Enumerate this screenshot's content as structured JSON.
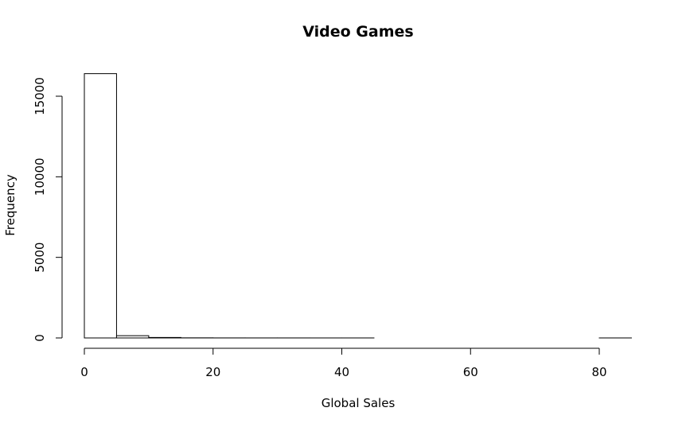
{
  "chart_data": {
    "type": "bar",
    "subtype": "histogram",
    "title": "Video Games",
    "xlabel": "Global Sales",
    "ylabel": "Frequency",
    "bin_edges": [
      0,
      5,
      10,
      15,
      20,
      25,
      30,
      35,
      40,
      45,
      50,
      55,
      60,
      65,
      70,
      75,
      80,
      85
    ],
    "values": [
      16400,
      140,
      30,
      7,
      3,
      2,
      2,
      1,
      1,
      0,
      0,
      0,
      0,
      0,
      0,
      0,
      1
    ],
    "xlim": [
      0,
      85
    ],
    "ylim": [
      0,
      16400
    ],
    "x_ticks": [
      0,
      20,
      40,
      60,
      80
    ],
    "y_ticks": [
      0,
      5000,
      10000,
      15000
    ],
    "grid": false,
    "legend": "none"
  }
}
